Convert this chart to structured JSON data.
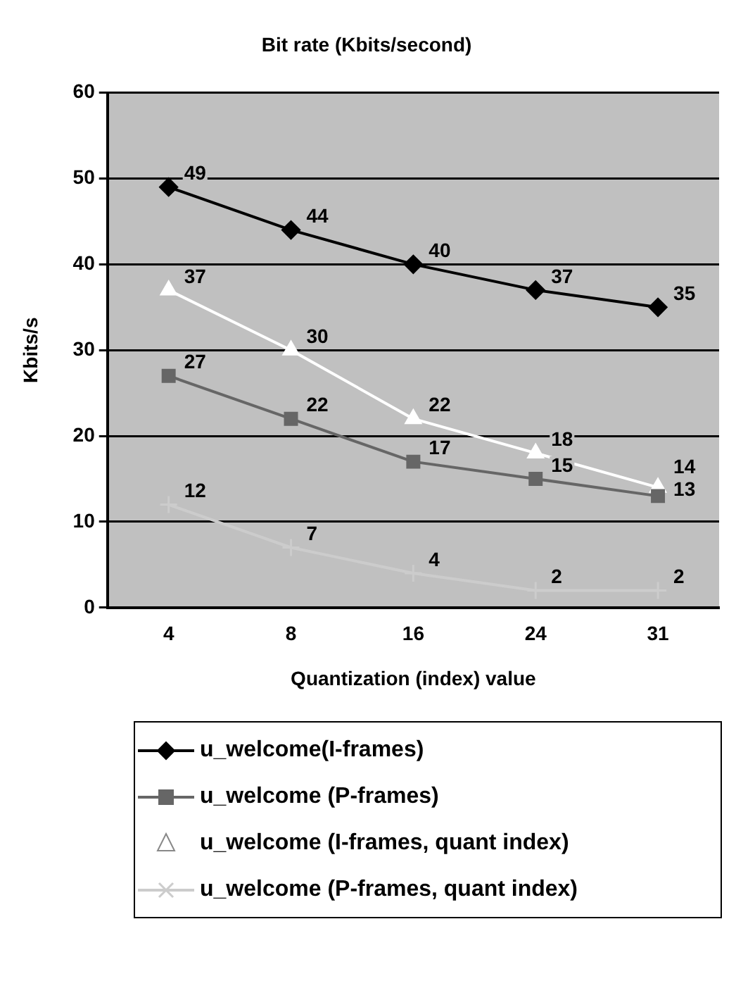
{
  "chart_data": {
    "type": "line",
    "title": "Bit rate (Kbits/second)",
    "xlabel": "Quantization (index) value",
    "ylabel": "Kbits/s",
    "categories": [
      "4",
      "8",
      "16",
      "24",
      "31"
    ],
    "series": [
      {
        "name": "u_welcome(I-frames)",
        "color": "#000000",
        "marker": "diamond",
        "values": [
          49,
          44,
          40,
          37,
          35
        ]
      },
      {
        "name": "u_welcome (P-frames)",
        "color": "#666666",
        "marker": "square",
        "values": [
          27,
          22,
          17,
          15,
          13
        ]
      },
      {
        "name": "u_welcome (I-frames, quant index)",
        "color": "#ffffff",
        "marker": "triangle",
        "values": [
          37,
          30,
          22,
          18,
          14
        ]
      },
      {
        "name": "u_welcome (P-frames, quant index)",
        "color": "#cccccc",
        "marker": "cross",
        "values": [
          12,
          7,
          4,
          2,
          2
        ]
      }
    ],
    "ylim": [
      0,
      60
    ],
    "yticks": [
      0,
      10,
      20,
      30,
      40,
      50,
      60
    ],
    "grid": "y",
    "legend": "bottom",
    "data_labels": true
  }
}
